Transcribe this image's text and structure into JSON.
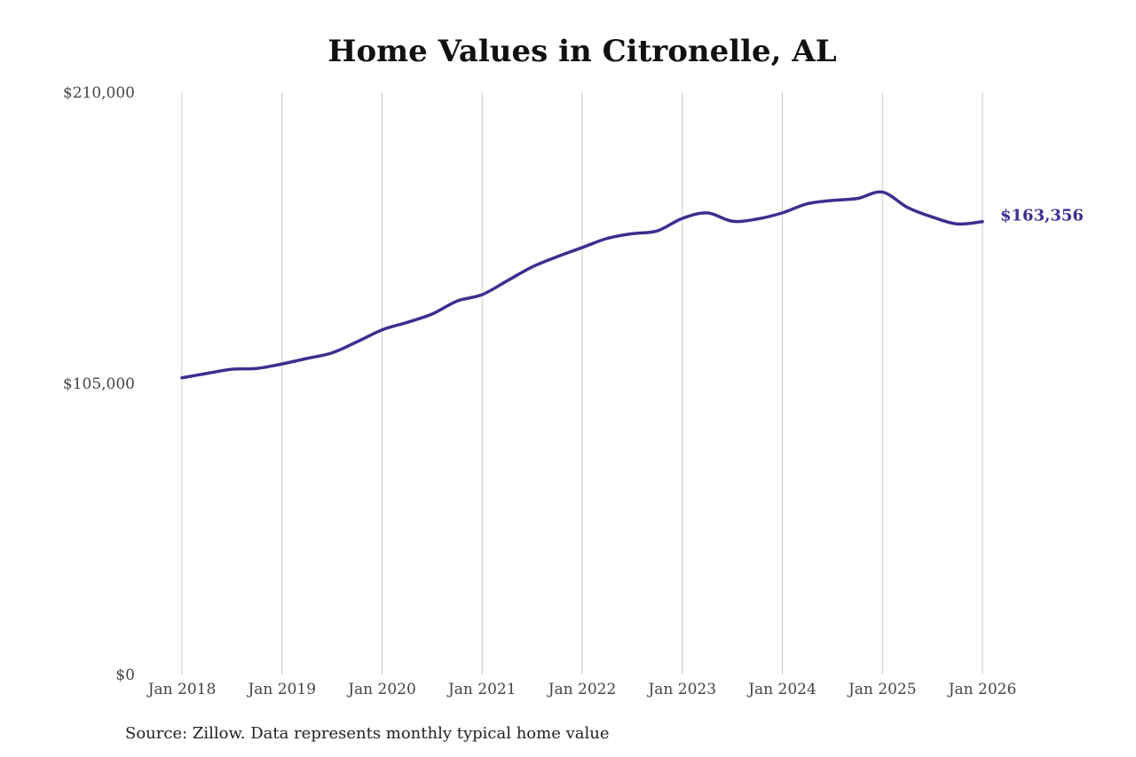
{
  "chart_data": {
    "type": "line",
    "title": "Home Values in Citronelle, AL",
    "source": "Source: Zillow. Data represents monthly typical home value",
    "y_tick_labels": [
      "$0",
      "$105,000",
      "$210,000"
    ],
    "y_ticks": [
      0,
      105000,
      210000
    ],
    "ylim": [
      0,
      210000
    ],
    "x_tick_labels": [
      "Jan 2018",
      "Jan 2019",
      "Jan 2020",
      "Jan 2021",
      "Jan 2022",
      "Jan 2023",
      "Jan 2024",
      "Jan 2025",
      "Jan 2026"
    ],
    "x_ticks": [
      "2018-01",
      "2019-01",
      "2020-01",
      "2021-01",
      "2022-01",
      "2023-01",
      "2024-01",
      "2025-01",
      "2026-01"
    ],
    "xlim": [
      "2018-01",
      "2026-01"
    ],
    "grid": "vertical",
    "line_color": "#3b2f8f",
    "end_value_label": "$163,356",
    "series": [
      {
        "x": [
          "2018-01",
          "2018-04",
          "2018-07",
          "2018-10",
          "2019-01",
          "2019-04",
          "2019-07",
          "2019-10",
          "2020-01",
          "2020-04",
          "2020-07",
          "2020-10",
          "2021-01",
          "2021-04",
          "2021-07",
          "2021-10",
          "2022-01",
          "2022-04",
          "2022-07",
          "2022-10",
          "2023-01",
          "2023-04",
          "2023-07",
          "2023-10",
          "2024-01",
          "2024-04",
          "2024-07",
          "2024-10",
          "2025-01",
          "2025-04",
          "2025-07",
          "2025-10",
          "2026-01"
        ],
        "values": [
          107000,
          108600,
          110100,
          110400,
          112000,
          114000,
          116000,
          120000,
          124300,
          127000,
          130000,
          134700,
          137000,
          142000,
          147000,
          150700,
          154000,
          157300,
          159000,
          160000,
          164500,
          166500,
          163500,
          164300,
          166500,
          169800,
          171000,
          171700,
          174000,
          168500,
          165000,
          162500,
          163356
        ]
      }
    ]
  }
}
